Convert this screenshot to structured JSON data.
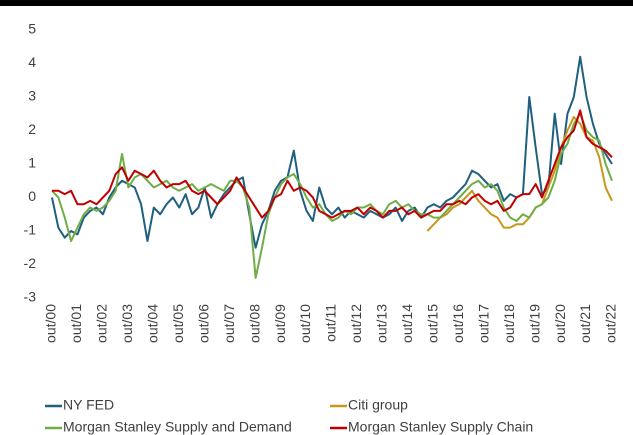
{
  "chart_data": {
    "type": "line",
    "categories": [
      "out/00",
      null,
      null,
      null,
      "out/01",
      null,
      null,
      null,
      "out/02",
      null,
      null,
      null,
      "out/03",
      null,
      null,
      null,
      "out/04",
      null,
      null,
      null,
      "out/05",
      null,
      null,
      null,
      "out/06",
      null,
      null,
      null,
      "out/07",
      null,
      null,
      null,
      "out/08",
      null,
      null,
      null,
      "out/09",
      null,
      null,
      null,
      "out/10",
      null,
      null,
      null,
      "out/11",
      null,
      null,
      null,
      "out/12",
      null,
      null,
      null,
      "out/13",
      null,
      null,
      null,
      "out/14",
      null,
      null,
      null,
      "out/15",
      null,
      null,
      null,
      "out/16",
      null,
      null,
      null,
      "out/17",
      null,
      null,
      null,
      "out/18",
      null,
      null,
      null,
      "out/19",
      null,
      null,
      null,
      "out/20",
      null,
      null,
      null,
      "out/21",
      null,
      null,
      null,
      "out/22"
    ],
    "series": [
      {
        "name": "NY FED",
        "color": "#1f5f80",
        "values": [
          0,
          -0.9,
          -1.2,
          -1.0,
          -1.1,
          -0.6,
          -0.4,
          -0.3,
          -0.5,
          0.0,
          0.3,
          0.5,
          0.4,
          0.3,
          -0.2,
          -1.3,
          -0.3,
          -0.5,
          -0.2,
          0.0,
          -0.3,
          0.1,
          -0.5,
          -0.3,
          0.3,
          -0.6,
          -0.2,
          0.1,
          0.3,
          0.5,
          0.6,
          -0.5,
          -1.5,
          -0.8,
          -0.4,
          0.2,
          0.5,
          0.6,
          1.4,
          0.2,
          -0.4,
          -0.7,
          0.3,
          -0.3,
          -0.5,
          -0.3,
          -0.6,
          -0.4,
          -0.5,
          -0.6,
          -0.4,
          -0.5,
          -0.6,
          -0.5,
          -0.3,
          -0.7,
          -0.4,
          -0.3,
          -0.6,
          -0.3,
          -0.2,
          -0.3,
          -0.1,
          0.0,
          0.2,
          0.4,
          0.8,
          0.7,
          0.5,
          0.3,
          0.4,
          -0.1,
          0.1,
          0.0,
          0.1,
          3.0,
          1.5,
          0.1,
          0.3,
          2.5,
          1.0,
          2.5,
          3.0,
          4.2,
          3.0,
          2.2,
          1.6,
          1.3,
          1.0
        ]
      },
      {
        "name": "Citi group",
        "color": "#c9961d",
        "values": [
          null,
          null,
          null,
          null,
          null,
          null,
          null,
          null,
          null,
          null,
          null,
          null,
          null,
          null,
          null,
          null,
          null,
          null,
          null,
          null,
          null,
          null,
          null,
          null,
          null,
          null,
          null,
          null,
          null,
          null,
          null,
          null,
          null,
          null,
          null,
          null,
          null,
          null,
          null,
          null,
          null,
          null,
          null,
          null,
          null,
          null,
          null,
          null,
          null,
          null,
          null,
          null,
          null,
          null,
          null,
          null,
          null,
          null,
          null,
          -1.0,
          -0.8,
          -0.6,
          -0.5,
          -0.3,
          -0.2,
          0.0,
          0.2,
          -0.1,
          -0.3,
          -0.5,
          -0.6,
          -0.9,
          -0.9,
          -0.8,
          -0.8,
          -0.6,
          -0.3,
          -0.2,
          0.3,
          0.8,
          1.5,
          2.0,
          2.4,
          2.2,
          1.8,
          1.7,
          1.2,
          0.3,
          -0.1
        ]
      },
      {
        "name": "Morgan Stanley Supply and Demand",
        "color": "#70ad47",
        "values": [
          0.2,
          0,
          -0.6,
          -1.3,
          -0.9,
          -0.5,
          -0.3,
          -0.4,
          -0.3,
          -0.1,
          0.2,
          1.3,
          0.3,
          0.6,
          0.7,
          0.5,
          0.3,
          0.4,
          0.5,
          0.3,
          0.2,
          0.3,
          0.4,
          0.2,
          0.3,
          0.4,
          0.3,
          0.2,
          0.5,
          0.5,
          0.3,
          -0.3,
          -2.4,
          -1.5,
          -0.5,
          0.0,
          0.4,
          0.6,
          0.7,
          0.4,
          0.0,
          -0.3,
          -0.2,
          -0.5,
          -0.7,
          -0.6,
          -0.4,
          -0.5,
          -0.3,
          -0.3,
          -0.2,
          -0.4,
          -0.5,
          -0.2,
          -0.1,
          -0.3,
          -0.2,
          -0.4,
          -0.5,
          -0.5,
          -0.6,
          -0.6,
          -0.4,
          -0.2,
          0.0,
          0.2,
          0.4,
          0.5,
          0.3,
          0.4,
          0.2,
          -0.3,
          -0.6,
          -0.7,
          -0.5,
          -0.6,
          -0.3,
          -0.2,
          0.0,
          0.5,
          1.3,
          1.6,
          2.2,
          2.5,
          2.0,
          1.8,
          1.7,
          1.0,
          0.5
        ]
      },
      {
        "name": "Morgan Stanley Supply Chain",
        "color": "#c00000",
        "values": [
          0.2,
          0.2,
          0.1,
          0.2,
          -0.2,
          -0.2,
          -0.1,
          -0.2,
          0.0,
          0.2,
          0.7,
          0.9,
          0.5,
          0.8,
          0.7,
          0.6,
          0.8,
          0.5,
          0.3,
          0.4,
          0.4,
          0.5,
          0.2,
          0.1,
          0.2,
          0.0,
          -0.2,
          0.0,
          0.2,
          0.6,
          0.3,
          0.0,
          -0.3,
          -0.6,
          -0.4,
          0.0,
          0.1,
          0.5,
          0.2,
          0.3,
          0.2,
          0.0,
          -0.4,
          -0.5,
          -0.6,
          -0.5,
          -0.4,
          -0.4,
          -0.3,
          -0.5,
          -0.3,
          -0.4,
          -0.6,
          -0.4,
          -0.4,
          -0.3,
          -0.5,
          -0.4,
          -0.6,
          -0.5,
          -0.4,
          -0.4,
          -0.2,
          -0.2,
          -0.1,
          -0.2,
          0.0,
          0.1,
          -0.1,
          -0.2,
          -0.1,
          -0.4,
          -0.3,
          0.0,
          0.1,
          0.1,
          0.4,
          0.0,
          0.5,
          1.0,
          1.5,
          1.8,
          2.0,
          2.6,
          1.8,
          1.6,
          1.5,
          1.4,
          1.2
        ]
      }
    ],
    "ylim": [
      -3,
      5
    ],
    "yticks": [
      -3,
      -2,
      -1,
      0,
      1,
      2,
      3,
      4,
      5
    ],
    "grid": false
  }
}
